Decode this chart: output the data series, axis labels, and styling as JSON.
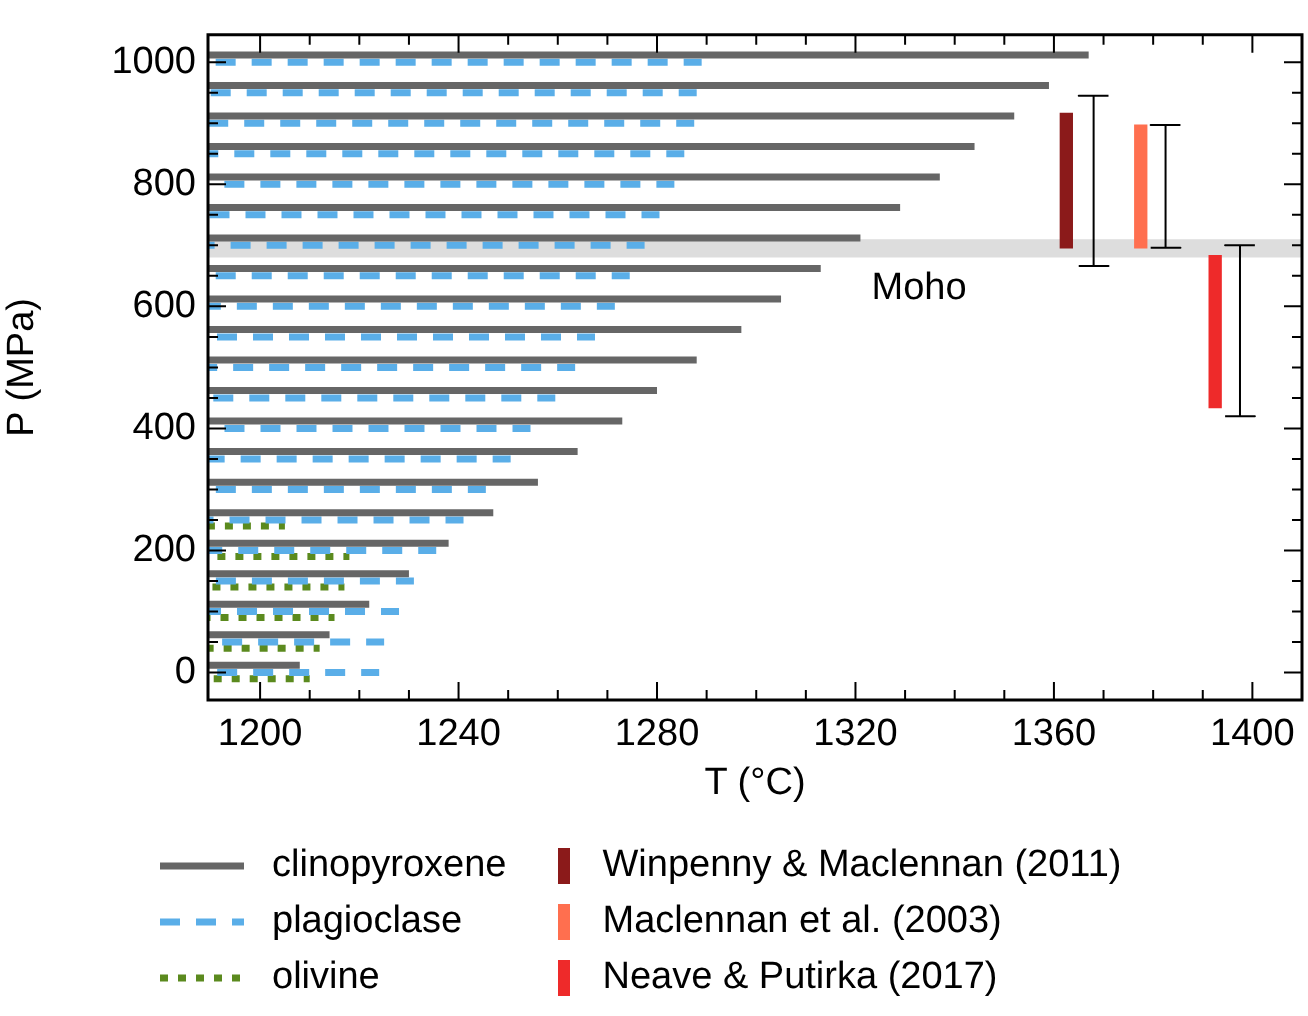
{
  "chart_data": {
    "type": "line",
    "xlabel": "T (°C)",
    "ylabel": "P (MPa)",
    "xlim": [
      1189.5,
      1410
    ],
    "ylim": [
      -45,
      1045
    ],
    "xticks": [
      1200,
      {
        "value": 1210,
        "label": null
      },
      {
        "value": 1220,
        "label": null
      },
      {
        "value": 1230,
        "label": null
      },
      1240,
      {
        "value": 1250,
        "label": null
      },
      {
        "value": 1260,
        "label": null
      },
      {
        "value": 1270,
        "label": null
      },
      1280,
      {
        "value": 1290,
        "label": null
      },
      {
        "value": 1300,
        "label": null
      },
      {
        "value": 1310,
        "label": null
      },
      1320,
      {
        "value": 1330,
        "label": null
      },
      {
        "value": 1340,
        "label": null
      },
      {
        "value": 1350,
        "label": null
      },
      1360,
      {
        "value": 1370,
        "label": null
      },
      {
        "value": 1380,
        "label": null
      },
      {
        "value": 1390,
        "label": null
      },
      1400
    ],
    "yticks": [
      0,
      {
        "value": 50,
        "label": null
      },
      {
        "value": 100,
        "label": null
      },
      {
        "value": 150,
        "label": null
      },
      200,
      {
        "value": 250,
        "label": null
      },
      {
        "value": 300,
        "label": null
      },
      {
        "value": 350,
        "label": null
      },
      400,
      {
        "value": 450,
        "label": null
      },
      {
        "value": 500,
        "label": null
      },
      {
        "value": 550,
        "label": null
      },
      600,
      {
        "value": 650,
        "label": null
      },
      {
        "value": 700,
        "label": null
      },
      {
        "value": 750,
        "label": null
      },
      800,
      {
        "value": 850,
        "label": null
      },
      {
        "value": 900,
        "label": null
      },
      {
        "value": 950,
        "label": null
      },
      1000
    ],
    "marker": "none",
    "legend": "bottom",
    "bands": [
      {
        "axis": "y",
        "from": 680,
        "to": 710,
        "label": "Moho",
        "color": "#dddddd"
      }
    ],
    "series": [
      {
        "name": "clinopyroxene",
        "line_style": "solid",
        "color": "#666666",
        "x": [
          1189.5,
          1367
        ],
        "values": [
          1012,
          1012
        ]
      },
      {
        "line_style": "solid",
        "color": "#666666",
        "x": [
          1189.5,
          1359
        ],
        "values": [
          962,
          962
        ]
      },
      {
        "line_style": "solid",
        "color": "#666666",
        "x": [
          1189.5,
          1352
        ],
        "values": [
          912,
          912
        ]
      },
      {
        "line_style": "solid",
        "color": "#666666",
        "x": [
          1189.5,
          1344
        ],
        "values": [
          862,
          862
        ]
      },
      {
        "line_style": "solid",
        "color": "#666666",
        "x": [
          1189.5,
          1337
        ],
        "values": [
          812,
          812
        ]
      },
      {
        "line_style": "solid",
        "color": "#666666",
        "x": [
          1189.5,
          1329
        ],
        "values": [
          762,
          762
        ]
      },
      {
        "line_style": "solid",
        "color": "#666666",
        "x": [
          1189.5,
          1321
        ],
        "values": [
          712,
          712
        ]
      },
      {
        "line_style": "solid",
        "color": "#666666",
        "x": [
          1189.5,
          1313
        ],
        "values": [
          662,
          662
        ]
      },
      {
        "line_style": "solid",
        "color": "#666666",
        "x": [
          1189.5,
          1305
        ],
        "values": [
          612,
          612
        ]
      },
      {
        "line_style": "solid",
        "color": "#666666",
        "x": [
          1189.5,
          1297
        ],
        "values": [
          562,
          562
        ]
      },
      {
        "line_style": "solid",
        "color": "#666666",
        "x": [
          1189.5,
          1288
        ],
        "values": [
          512,
          512
        ]
      },
      {
        "line_style": "solid",
        "color": "#666666",
        "x": [
          1189.5,
          1280
        ],
        "values": [
          462,
          462
        ]
      },
      {
        "line_style": "solid",
        "color": "#666666",
        "x": [
          1189.5,
          1273
        ],
        "values": [
          412,
          412
        ]
      },
      {
        "line_style": "solid",
        "color": "#666666",
        "x": [
          1189.5,
          1264
        ],
        "values": [
          362,
          362
        ]
      },
      {
        "line_style": "solid",
        "color": "#666666",
        "x": [
          1189.5,
          1256
        ],
        "values": [
          312,
          312
        ]
      },
      {
        "line_style": "solid",
        "color": "#666666",
        "x": [
          1189.5,
          1247
        ],
        "values": [
          262,
          262
        ]
      },
      {
        "line_style": "solid",
        "color": "#666666",
        "x": [
          1189.5,
          1238
        ],
        "values": [
          212,
          212
        ]
      },
      {
        "line_style": "solid",
        "color": "#666666",
        "x": [
          1189.5,
          1230
        ],
        "values": [
          162,
          162
        ]
      },
      {
        "line_style": "solid",
        "color": "#666666",
        "x": [
          1189.5,
          1222
        ],
        "values": [
          112,
          112
        ]
      },
      {
        "line_style": "solid",
        "color": "#666666",
        "x": [
          1189.5,
          1214
        ],
        "values": [
          62,
          62
        ]
      },
      {
        "line_style": "solid",
        "color": "#666666",
        "x": [
          1189.5,
          1208
        ],
        "values": [
          12,
          12
        ]
      },
      {
        "name": "plagioclase",
        "line_style": "dashed",
        "color": "#5aaee8",
        "x": [
          1189.5,
          1289
        ],
        "values": [
          1000,
          1000
        ]
      },
      {
        "line_style": "dashed",
        "color": "#5aaee8",
        "x": [
          1189.5,
          1288
        ],
        "values": [
          950,
          950
        ]
      },
      {
        "line_style": "dashed",
        "color": "#5aaee8",
        "x": [
          1189.5,
          1287.5
        ],
        "values": [
          900,
          900
        ]
      },
      {
        "line_style": "dashed",
        "color": "#5aaee8",
        "x": [
          1189.5,
          1285.5
        ],
        "values": [
          850,
          850
        ]
      },
      {
        "line_style": "dashed",
        "color": "#5aaee8",
        "x": [
          1189.5,
          1283.5
        ],
        "values": [
          800,
          800
        ]
      },
      {
        "line_style": "dashed",
        "color": "#5aaee8",
        "x": [
          1189.5,
          1280.5
        ],
        "values": [
          750,
          750
        ]
      },
      {
        "line_style": "dashed",
        "color": "#5aaee8",
        "x": [
          1189.5,
          1277.5
        ],
        "values": [
          700,
          700
        ]
      },
      {
        "line_style": "dashed",
        "color": "#5aaee8",
        "x": [
          1189.5,
          1274.5
        ],
        "values": [
          650,
          650
        ]
      },
      {
        "line_style": "dashed",
        "color": "#5aaee8",
        "x": [
          1189.5,
          1271.5
        ],
        "values": [
          600,
          600
        ]
      },
      {
        "line_style": "dashed",
        "color": "#5aaee8",
        "x": [
          1189.5,
          1267.5
        ],
        "values": [
          550,
          550
        ]
      },
      {
        "line_style": "dashed",
        "color": "#5aaee8",
        "x": [
          1189.5,
          1263.5
        ],
        "values": [
          500,
          500
        ]
      },
      {
        "line_style": "dashed",
        "color": "#5aaee8",
        "x": [
          1189.5,
          1259.5
        ],
        "values": [
          450,
          450
        ]
      },
      {
        "line_style": "dashed",
        "color": "#5aaee8",
        "x": [
          1189.5,
          1254.5
        ],
        "values": [
          400,
          400
        ]
      },
      {
        "line_style": "dashed",
        "color": "#5aaee8",
        "x": [
          1189.5,
          1250.5
        ],
        "values": [
          350,
          350
        ]
      },
      {
        "line_style": "dashed",
        "color": "#5aaee8",
        "x": [
          1189.5,
          1245.5
        ],
        "values": [
          300,
          300
        ]
      },
      {
        "line_style": "dashed",
        "color": "#5aaee8",
        "x": [
          1189.5,
          1241
        ],
        "values": [
          250,
          250
        ]
      },
      {
        "line_style": "dashed",
        "color": "#5aaee8",
        "x": [
          1189.5,
          1235.5
        ],
        "values": [
          200,
          200
        ]
      },
      {
        "line_style": "dashed",
        "color": "#5aaee8",
        "x": [
          1189.5,
          1231
        ],
        "values": [
          150,
          150
        ]
      },
      {
        "line_style": "dashed",
        "color": "#5aaee8",
        "x": [
          1189.5,
          1228
        ],
        "values": [
          100,
          100
        ]
      },
      {
        "line_style": "dashed",
        "color": "#5aaee8",
        "x": [
          1189.5,
          1225
        ],
        "values": [
          50,
          50
        ]
      },
      {
        "line_style": "dashed",
        "color": "#5aaee8",
        "x": [
          1189.5,
          1224
        ],
        "values": [
          0,
          0
        ]
      },
      {
        "name": "olivine",
        "line_style": "dotted",
        "color": "#5b8a1e",
        "x": [
          1189.5,
          1205
        ],
        "values": [
          240,
          240
        ]
      },
      {
        "line_style": "dotted",
        "color": "#5b8a1e",
        "x": [
          1189.5,
          1218
        ],
        "values": [
          190,
          190
        ]
      },
      {
        "line_style": "dotted",
        "color": "#5b8a1e",
        "x": [
          1189.5,
          1217
        ],
        "values": [
          140,
          140
        ]
      },
      {
        "line_style": "dotted",
        "color": "#5b8a1e",
        "x": [
          1189.5,
          1215
        ],
        "values": [
          90,
          90
        ]
      },
      {
        "line_style": "dotted",
        "color": "#5b8a1e",
        "x": [
          1189.5,
          1212
        ],
        "values": [
          40,
          40
        ]
      },
      {
        "line_style": "dotted",
        "color": "#5b8a1e",
        "x": [
          1189.5,
          1210
        ],
        "values": [
          -10,
          -10
        ]
      },
      {
        "name": "Winpenny & Maclennan (2011)",
        "type": "bar",
        "color": "#8b1a1a",
        "x": [
          1362.5
        ],
        "base": [
          696
        ],
        "values": [
          220
        ]
      },
      {
        "name": "Maclennan et al. (2003)",
        "type": "bar",
        "color": "#ff6f4f",
        "x": [
          1377.5
        ],
        "base": [
          696
        ],
        "values": [
          201
        ]
      },
      {
        "name": "Neave & Putirka (2017)",
        "type": "bar",
        "color": "#ee2a2a",
        "x": [
          1392.5
        ],
        "base": [
          434
        ],
        "values": [
          249
        ]
      },
      {
        "line_style": "solid",
        "color": "#000000",
        "x": [
          1365,
          1371,
          1368,
          1368,
          1365,
          1371
        ],
        "values": [
          666,
          666,
          666,
          945,
          945,
          945
        ]
      },
      {
        "line_style": "solid",
        "color": "#000000",
        "x": [
          1379.5,
          1385.5,
          1382.5,
          1382.5,
          1379.5,
          1385.5
        ],
        "values": [
          696,
          696,
          696,
          897,
          897,
          897
        ]
      },
      {
        "line_style": "solid",
        "color": "#000000",
        "x": [
          1394.5,
          1400.5,
          1397.5,
          1397.5,
          1394.5,
          1400.5
        ],
        "values": [
          420,
          420,
          420,
          700,
          700,
          700
        ]
      }
    ]
  }
}
